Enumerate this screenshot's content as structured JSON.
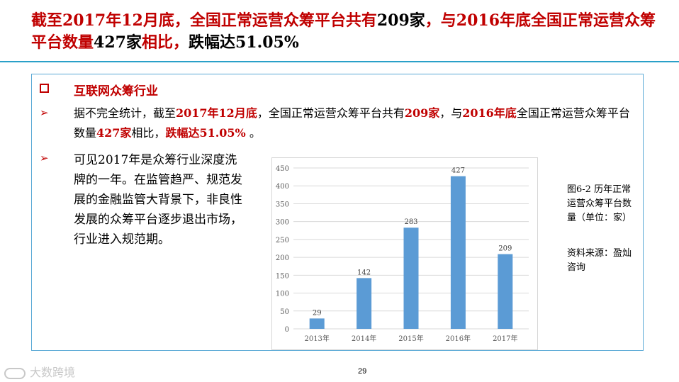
{
  "title": {
    "seg1": "截至2017年12月底，全国正常运营众筹平台共有",
    "seg2": "209家",
    "seg3": "，与2016年底全国正常运营众筹平台数量",
    "seg4": "427家",
    "seg5": "相比，",
    "seg6": "跌幅达51.05%"
  },
  "section": {
    "heading": "互联网众筹行业",
    "bullet1": {
      "p1": "据不完全统计，截至",
      "r1": "2017年12月底",
      "p2": "，全国正常运营众筹平台共有",
      "r2": "209家",
      "p3": "，与",
      "r3": "2016年底",
      "p4": "全国正常运营众筹平台数量",
      "r4": "427家",
      "p5": "相比，",
      "r5": "跌幅达51.05%",
      "p6": " 。"
    },
    "bullet2": "可见2017年是众筹行业深度洗牌的一年。在监管趋严、规范发展的金融监管大背景下，非良性发展的众筹平台逐步退出市场，行业进入规范期。"
  },
  "caption": "图6-2  历年正常运营众筹平台数量（单位：家）",
  "source": "资料来源：盈灿咨询",
  "page_number": "29",
  "watermark": "大数跨境",
  "colors": {
    "accent_red": "#c00000",
    "bar": "#5b9bd5",
    "rule": "#2aa0c8"
  },
  "icons": {
    "section_marker": "square-outline-icon",
    "bullet": "arrow-bullet-icon"
  },
  "chart_data": {
    "type": "bar",
    "categories": [
      "2013年",
      "2014年",
      "2015年",
      "2016年",
      "2017年"
    ],
    "values": [
      29,
      142,
      283,
      427,
      209
    ],
    "ylim": [
      0,
      450
    ],
    "yticks": [
      0,
      50,
      100,
      150,
      200,
      250,
      300,
      350,
      400,
      450
    ],
    "grid": true,
    "title": "",
    "xlabel": "",
    "ylabel": ""
  }
}
